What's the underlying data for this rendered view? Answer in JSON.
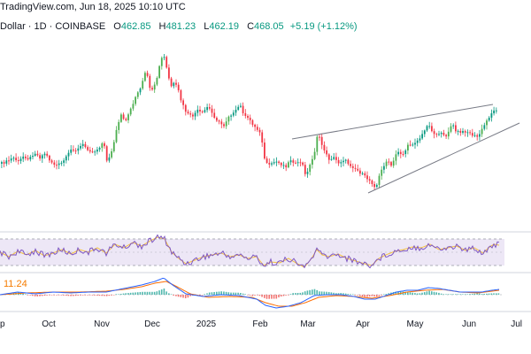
{
  "header": {
    "brand": "TradingView.com, Jun 18, 2025 10:10 UTC",
    "symbol": "Dollar · 1D · COINBASE",
    "open_label": "O",
    "open": "462.85",
    "high_label": "H",
    "high": "481.23",
    "low_label": "L",
    "low": "462.19",
    "close_label": "C",
    "close": "468.05",
    "change": "+5.19 (+1.12%)"
  },
  "macd": {
    "value": "11.24"
  },
  "x_axis": {
    "labels": [
      {
        "text": "p",
        "x": 0
      },
      {
        "text": "Oct",
        "x": 55
      },
      {
        "text": "Nov",
        "x": 115
      },
      {
        "text": "Dec",
        "x": 172
      },
      {
        "text": "2025",
        "x": 233
      },
      {
        "text": "Feb",
        "x": 294
      },
      {
        "text": "Mar",
        "x": 348
      },
      {
        "text": "Apr",
        "x": 410
      },
      {
        "text": "May",
        "x": 469
      },
      {
        "text": "Jun",
        "x": 530
      },
      {
        "text": "Jul",
        "x": 590
      }
    ]
  },
  "colors": {
    "up": "#089981",
    "down": "#f23645",
    "up_bright": "#4caf50",
    "trendline": "#787b86",
    "rsi_line": "#7e57c2",
    "rsi_ma": "#f5c242",
    "rsi_band": "#ede7f6",
    "macd_line": "#2962ff",
    "signal_line": "#ff6d00",
    "grid": "#d1d4dc"
  },
  "chart_data": {
    "type": "candlestick",
    "symbol": "Dollar · 1D · COINBASE",
    "price_path": [
      [
        0,
        185
      ],
      [
        8,
        182
      ],
      [
        14,
        178
      ],
      [
        20,
        183
      ],
      [
        26,
        176
      ],
      [
        32,
        180
      ],
      [
        38,
        172
      ],
      [
        44,
        178
      ],
      [
        50,
        173
      ],
      [
        56,
        182
      ],
      [
        62,
        187
      ],
      [
        68,
        185
      ],
      [
        74,
        178
      ],
      [
        80,
        168
      ],
      [
        86,
        170
      ],
      [
        92,
        163
      ],
      [
        98,
        168
      ],
      [
        104,
        172
      ],
      [
        110,
        168
      ],
      [
        116,
        160
      ],
      [
        120,
        182
      ],
      [
        126,
        170
      ],
      [
        130,
        150
      ],
      [
        136,
        130
      ],
      [
        140,
        138
      ],
      [
        146,
        125
      ],
      [
        152,
        110
      ],
      [
        158,
        100
      ],
      [
        164,
        80
      ],
      [
        170,
        105
      ],
      [
        176,
        92
      ],
      [
        180,
        70
      ],
      [
        184,
        62
      ],
      [
        188,
        80
      ],
      [
        192,
        98
      ],
      [
        196,
        94
      ],
      [
        200,
        100
      ],
      [
        204,
        115
      ],
      [
        210,
        128
      ],
      [
        216,
        132
      ],
      [
        222,
        125
      ],
      [
        228,
        128
      ],
      [
        234,
        120
      ],
      [
        240,
        130
      ],
      [
        246,
        138
      ],
      [
        252,
        142
      ],
      [
        258,
        130
      ],
      [
        264,
        128
      ],
      [
        270,
        118
      ],
      [
        276,
        132
      ],
      [
        282,
        136
      ],
      [
        288,
        145
      ],
      [
        294,
        150
      ],
      [
        298,
        180
      ],
      [
        304,
        188
      ],
      [
        310,
        182
      ],
      [
        316,
        185
      ],
      [
        322,
        188
      ],
      [
        328,
        180
      ],
      [
        334,
        186
      ],
      [
        340,
        182
      ],
      [
        344,
        198
      ],
      [
        348,
        190
      ],
      [
        354,
        175
      ],
      [
        358,
        150
      ],
      [
        362,
        162
      ],
      [
        366,
        170
      ],
      [
        370,
        180
      ],
      [
        376,
        178
      ],
      [
        382,
        184
      ],
      [
        388,
        180
      ],
      [
        394,
        186
      ],
      [
        400,
        190
      ],
      [
        406,
        195
      ],
      [
        412,
        200
      ],
      [
        418,
        205
      ],
      [
        424,
        212
      ],
      [
        428,
        198
      ],
      [
        432,
        188
      ],
      [
        436,
        182
      ],
      [
        442,
        188
      ],
      [
        448,
        170
      ],
      [
        454,
        175
      ],
      [
        460,
        165
      ],
      [
        466,
        162
      ],
      [
        472,
        158
      ],
      [
        478,
        150
      ],
      [
        482,
        140
      ],
      [
        486,
        145
      ],
      [
        490,
        152
      ],
      [
        496,
        150
      ],
      [
        502,
        155
      ],
      [
        506,
        148
      ],
      [
        510,
        140
      ],
      [
        514,
        148
      ],
      [
        520,
        150
      ],
      [
        526,
        148
      ],
      [
        532,
        152
      ],
      [
        538,
        155
      ],
      [
        542,
        150
      ],
      [
        546,
        142
      ],
      [
        550,
        135
      ],
      [
        554,
        128
      ],
      [
        558,
        125
      ],
      [
        562,
        122
      ]
    ],
    "rsi_path": [
      [
        0,
        285
      ],
      [
        10,
        290
      ],
      [
        20,
        284
      ],
      [
        30,
        288
      ],
      [
        40,
        283
      ],
      [
        50,
        289
      ],
      [
        60,
        286
      ],
      [
        70,
        282
      ],
      [
        80,
        287
      ],
      [
        90,
        282
      ],
      [
        100,
        285
      ],
      [
        110,
        280
      ],
      [
        120,
        286
      ],
      [
        130,
        276
      ],
      [
        140,
        280
      ],
      [
        150,
        274
      ],
      [
        160,
        278
      ],
      [
        170,
        272
      ],
      [
        178,
        268
      ],
      [
        186,
        270
      ],
      [
        194,
        285
      ],
      [
        202,
        292
      ],
      [
        210,
        298
      ],
      [
        220,
        294
      ],
      [
        230,
        290
      ],
      [
        240,
        288
      ],
      [
        250,
        286
      ],
      [
        260,
        290
      ],
      [
        270,
        288
      ],
      [
        280,
        292
      ],
      [
        290,
        290
      ],
      [
        298,
        300
      ],
      [
        306,
        296
      ],
      [
        316,
        297
      ],
      [
        326,
        292
      ],
      [
        336,
        298
      ],
      [
        344,
        302
      ],
      [
        352,
        292
      ],
      [
        358,
        282
      ],
      [
        364,
        288
      ],
      [
        372,
        290
      ],
      [
        382,
        287
      ],
      [
        392,
        292
      ],
      [
        402,
        295
      ],
      [
        412,
        298
      ],
      [
        420,
        300
      ],
      [
        428,
        292
      ],
      [
        436,
        288
      ],
      [
        446,
        284
      ],
      [
        456,
        282
      ],
      [
        466,
        279
      ],
      [
        476,
        280
      ],
      [
        486,
        276
      ],
      [
        496,
        282
      ],
      [
        506,
        280
      ],
      [
        516,
        278
      ],
      [
        526,
        283
      ],
      [
        536,
        280
      ],
      [
        546,
        286
      ],
      [
        552,
        280
      ],
      [
        558,
        276
      ],
      [
        564,
        277
      ]
    ],
    "macd_path": [
      [
        0,
        333
      ],
      [
        20,
        330
      ],
      [
        40,
        332
      ],
      [
        60,
        330
      ],
      [
        80,
        331
      ],
      [
        100,
        330
      ],
      [
        120,
        330
      ],
      [
        140,
        326
      ],
      [
        160,
        322
      ],
      [
        175,
        318
      ],
      [
        185,
        314
      ],
      [
        195,
        322
      ],
      [
        210,
        332
      ],
      [
        230,
        335
      ],
      [
        250,
        333
      ],
      [
        270,
        334
      ],
      [
        290,
        338
      ],
      [
        300,
        345
      ],
      [
        312,
        348
      ],
      [
        326,
        346
      ],
      [
        340,
        342
      ],
      [
        355,
        334
      ],
      [
        370,
        333
      ],
      [
        385,
        333
      ],
      [
        400,
        335
      ],
      [
        412,
        338
      ],
      [
        424,
        338
      ],
      [
        436,
        334
      ],
      [
        448,
        330
      ],
      [
        460,
        328
      ],
      [
        472,
        328
      ],
      [
        484,
        325
      ],
      [
        496,
        326
      ],
      [
        508,
        328
      ],
      [
        520,
        330
      ],
      [
        532,
        330
      ],
      [
        544,
        330
      ],
      [
        556,
        328
      ],
      [
        564,
        327
      ]
    ],
    "signal_path": [
      [
        0,
        333
      ],
      [
        30,
        331
      ],
      [
        60,
        330
      ],
      [
        90,
        330
      ],
      [
        120,
        329
      ],
      [
        140,
        327
      ],
      [
        160,
        324
      ],
      [
        175,
        320
      ],
      [
        188,
        318
      ],
      [
        200,
        324
      ],
      [
        215,
        332
      ],
      [
        235,
        336
      ],
      [
        260,
        335
      ],
      [
        285,
        336
      ],
      [
        300,
        342
      ],
      [
        315,
        346
      ],
      [
        330,
        346
      ],
      [
        345,
        342
      ],
      [
        360,
        336
      ],
      [
        380,
        334
      ],
      [
        400,
        335
      ],
      [
        420,
        337
      ],
      [
        440,
        334
      ],
      [
        460,
        330
      ],
      [
        480,
        328
      ],
      [
        500,
        327
      ],
      [
        520,
        330
      ],
      [
        540,
        331
      ],
      [
        556,
        329
      ],
      [
        564,
        328
      ]
    ],
    "trendlines": [
      {
        "from": [
          330,
          157
        ],
        "to": [
          557,
          118
        ]
      },
      {
        "from": [
          416,
          218
        ],
        "to": [
          587,
          139
        ]
      }
    ]
  }
}
